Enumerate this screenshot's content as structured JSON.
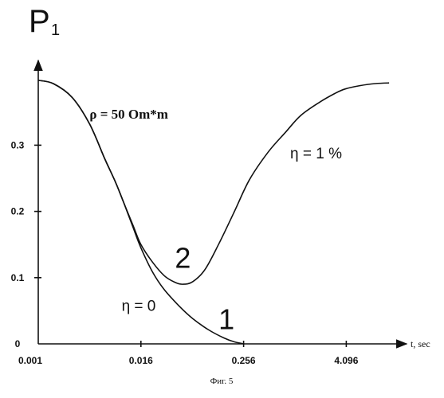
{
  "chart_data": {
    "type": "line",
    "title": "P",
    "title_subscript": "1",
    "xlabel": "t, sec",
    "ylabel": "",
    "x_scale": "log2",
    "xlim": [
      0.001,
      16.0
    ],
    "ylim": [
      0,
      0.4
    ],
    "x_ticks": [
      {
        "value": 0.001,
        "label": "0.001"
      },
      {
        "value": 0.016,
        "label": "0.016"
      },
      {
        "value": 0.256,
        "label": "0.256"
      },
      {
        "value": 4.096,
        "label": "4.096"
      }
    ],
    "y_ticks": [
      {
        "value": 0,
        "label": "0"
      },
      {
        "value": 0.1,
        "label": "0.1"
      },
      {
        "value": 0.2,
        "label": "0.2"
      },
      {
        "value": 0.3,
        "label": "0.3"
      }
    ],
    "grid": false,
    "series": [
      {
        "name": "1",
        "points": [
          [
            0.001,
            0.398
          ],
          [
            0.0015,
            0.393
          ],
          [
            0.0025,
            0.372
          ],
          [
            0.004,
            0.332
          ],
          [
            0.006,
            0.28
          ],
          [
            0.008,
            0.245
          ],
          [
            0.01,
            0.214
          ],
          [
            0.013,
            0.175
          ],
          [
            0.016,
            0.145
          ],
          [
            0.022,
            0.108
          ],
          [
            0.03,
            0.082
          ],
          [
            0.045,
            0.057
          ],
          [
            0.065,
            0.038
          ],
          [
            0.1,
            0.021
          ],
          [
            0.15,
            0.009
          ],
          [
            0.2,
            0.003
          ],
          [
            0.26,
            0.0
          ]
        ]
      },
      {
        "name": "2",
        "points": [
          [
            0.001,
            0.398
          ],
          [
            0.0015,
            0.393
          ],
          [
            0.0025,
            0.372
          ],
          [
            0.004,
            0.332
          ],
          [
            0.006,
            0.28
          ],
          [
            0.008,
            0.245
          ],
          [
            0.01,
            0.214
          ],
          [
            0.013,
            0.178
          ],
          [
            0.016,
            0.15
          ],
          [
            0.022,
            0.123
          ],
          [
            0.03,
            0.103
          ],
          [
            0.04,
            0.093
          ],
          [
            0.05,
            0.09
          ],
          [
            0.065,
            0.094
          ],
          [
            0.09,
            0.112
          ],
          [
            0.13,
            0.15
          ],
          [
            0.2,
            0.2
          ],
          [
            0.3,
            0.248
          ],
          [
            0.5,
            0.29
          ],
          [
            0.8,
            0.32
          ],
          [
            1.2,
            0.345
          ],
          [
            2.0,
            0.365
          ],
          [
            3.0,
            0.378
          ],
          [
            4.0,
            0.385
          ],
          [
            6.0,
            0.39
          ],
          [
            9.0,
            0.393
          ],
          [
            13.0,
            0.394
          ]
        ]
      }
    ],
    "annotations": [
      {
        "id": "rho",
        "text": "ρ = 50 Om*m",
        "x": 0.004,
        "y": 0.34
      },
      {
        "id": "eta1",
        "text": "η = 1 %",
        "x": 0.9,
        "y": 0.28
      },
      {
        "id": "eta0",
        "text": "η = 0",
        "x": 0.0095,
        "y": 0.05
      },
      {
        "id": "label2",
        "text": "2",
        "x": 0.04,
        "y": 0.115
      },
      {
        "id": "label1",
        "text": "1",
        "x": 0.13,
        "y": 0.022
      }
    ],
    "caption": "Фиг. 5"
  }
}
